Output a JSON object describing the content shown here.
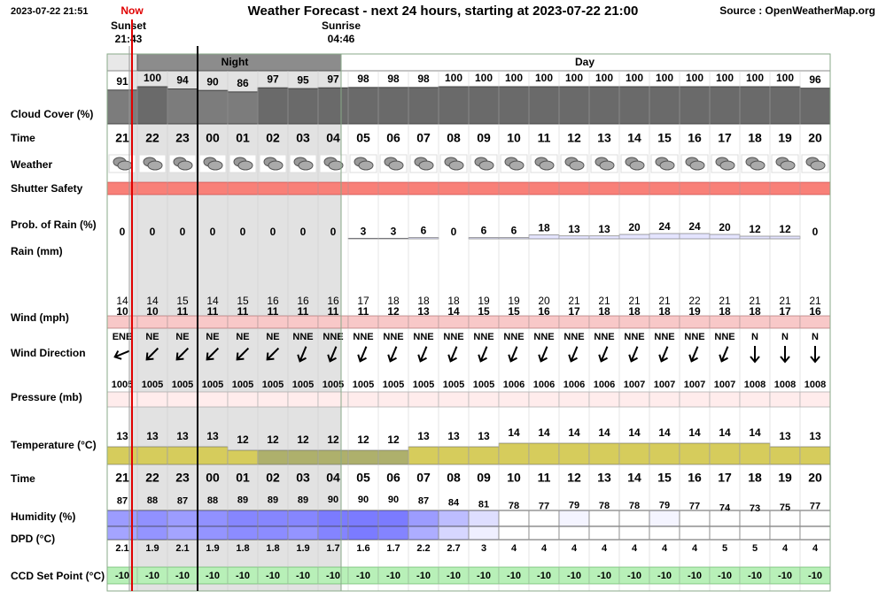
{
  "header": {
    "timestamp": "2023-07-22 21:51",
    "now": "Now",
    "title": "Weather Forecast - next 24 hours, starting at 2023-07-22 21:00",
    "source": "Source : OpenWeatherMap.org"
  },
  "sun": {
    "sunset_label": "Sunset",
    "sunset_time": "21:43",
    "sunrise_label": "Sunrise",
    "sunrise_time": "04:46"
  },
  "periods": {
    "night": "Night",
    "day": "Day"
  },
  "labels": {
    "cloud_cover": "Cloud Cover (%)",
    "time": "Time",
    "weather": "Weather",
    "shutter_safety": "Shutter Safety",
    "rain_prob": "Prob. of Rain (%)",
    "rain": "Rain (mm)",
    "wind": "Wind (mph)",
    "wind_direction": "Wind Direction",
    "pressure": "Pressure (mb)",
    "temperature": "Temperature (°C)",
    "time2": "Time",
    "humidity": "Humidity (%)",
    "dpd": "DPD (°C)",
    "ccd": "CCD Set Point (°C)"
  },
  "hours": [
    "21",
    "22",
    "23",
    "00",
    "01",
    "02",
    "03",
    "04",
    "05",
    "06",
    "07",
    "08",
    "09",
    "10",
    "11",
    "12",
    "13",
    "14",
    "15",
    "16",
    "17",
    "18",
    "19",
    "20"
  ],
  "cloud_cover": [
    91,
    100,
    94,
    90,
    86,
    97,
    95,
    97,
    98,
    98,
    98,
    100,
    100,
    100,
    100,
    100,
    100,
    100,
    100,
    100,
    100,
    100,
    100,
    96
  ],
  "rain_prob": [
    0,
    0,
    0,
    0,
    0,
    0,
    0,
    0,
    3,
    3,
    6,
    0,
    6,
    6,
    18,
    13,
    13,
    20,
    24,
    24,
    20,
    12,
    12,
    0
  ],
  "wind_gust": [
    14,
    14,
    15,
    14,
    15,
    16,
    16,
    16,
    17,
    18,
    18,
    18,
    19,
    19,
    20,
    21,
    21,
    21,
    21,
    22,
    21,
    21,
    21,
    21
  ],
  "wind_speed": [
    10,
    10,
    11,
    11,
    11,
    11,
    11,
    11,
    11,
    12,
    13,
    14,
    15,
    15,
    16,
    17,
    18,
    18,
    18,
    19,
    18,
    18,
    17,
    16
  ],
  "wind_direction": [
    "ENE",
    "NE",
    "NE",
    "NE",
    "NE",
    "NE",
    "NNE",
    "NNE",
    "NNE",
    "NNE",
    "NNE",
    "NNE",
    "NNE",
    "NNE",
    "NNE",
    "NNE",
    "NNE",
    "NNE",
    "NNE",
    "NNE",
    "NNE",
    "N",
    "N",
    "N"
  ],
  "pressure": [
    1005,
    1005,
    1005,
    1005,
    1005,
    1005,
    1005,
    1005,
    1005,
    1005,
    1005,
    1005,
    1005,
    1006,
    1006,
    1006,
    1006,
    1007,
    1007,
    1007,
    1007,
    1008,
    1008,
    1008
  ],
  "temperature": [
    13,
    13,
    13,
    13,
    12,
    12,
    12,
    12,
    12,
    12,
    13,
    13,
    13,
    14,
    14,
    14,
    14,
    14,
    14,
    14,
    14,
    14,
    13,
    13
  ],
  "temperature_colors": [
    "#d6cc5c",
    "#d6cc5c",
    "#d6cc5c",
    "#d6cc5c",
    "#d6cc5c",
    "#aeb06c",
    "#aeb06c",
    "#aeb06c",
    "#aeb06c",
    "#aeb06c",
    "#d6cc5c",
    "#d6cc5c",
    "#d6cc5c",
    "#d6cc5c",
    "#d6cc5c",
    "#d6cc5c",
    "#d6cc5c",
    "#d6cc5c",
    "#d6cc5c",
    "#d6cc5c",
    "#d6cc5c",
    "#d6cc5c",
    "#d6cc5c",
    "#d6cc5c"
  ],
  "humidity": [
    87,
    88,
    87,
    88,
    89,
    89,
    89,
    90,
    90,
    90,
    87,
    84,
    81,
    78,
    77,
    79,
    78,
    78,
    79,
    77,
    74,
    73,
    75,
    77
  ],
  "dpd": [
    2.1,
    1.9,
    2.1,
    1.9,
    1.8,
    1.8,
    1.9,
    1.7,
    1.6,
    1.7,
    2.2,
    2.7,
    3,
    4,
    4,
    4,
    4,
    4,
    4,
    4,
    5,
    5,
    4,
    4
  ],
  "ccd": [
    -10,
    -10,
    -10,
    -10,
    -10,
    -10,
    -10,
    -10,
    -10,
    -10,
    -10,
    -10,
    -10,
    -10,
    -10,
    -10,
    -10,
    -10,
    -10,
    -10,
    -10,
    -10,
    -10,
    -10
  ]
}
